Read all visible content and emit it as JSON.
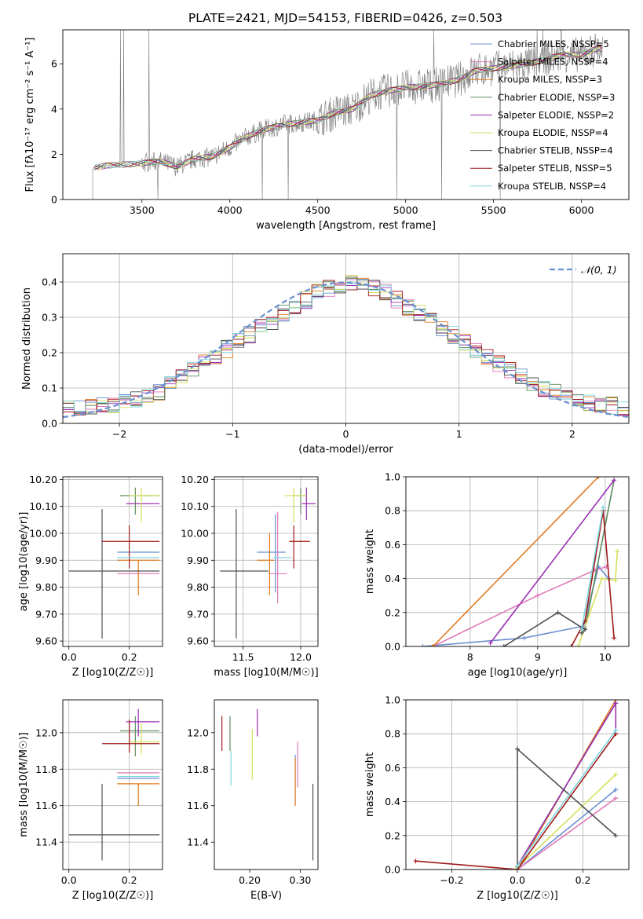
{
  "figure": {
    "title": "PLATE=2421, MJD=54153, FIBERID=0426, z=0.503"
  },
  "chart_data": [
    {
      "id": "spectrum",
      "type": "line",
      "title": "PLATE=2421, MJD=54153, FIBERID=0426, z=0.503",
      "xlabel": "wavelength [Angstrom, rest frame]",
      "ylabel": "Flux [fλ10⁻¹⁷ erg cm⁻² s⁻¹ A⁻¹]",
      "xlim": [
        3050,
        6270
      ],
      "ylim": [
        0,
        7.5
      ],
      "xticks": [
        3500,
        4000,
        4500,
        5000,
        5500,
        6000
      ],
      "yticks": [
        0,
        2,
        4,
        6
      ],
      "grid": false,
      "legend_position": "top-right",
      "data_curve": {
        "x": [
          3220,
          3300,
          3400,
          3500,
          3600,
          3700,
          3800,
          3900,
          4000,
          4100,
          4200,
          4300,
          4400,
          4500,
          4600,
          4700,
          4800,
          4900,
          5000,
          5100,
          5200,
          5300,
          5400,
          5500,
          5600,
          5700,
          5800,
          5900,
          6000,
          6100,
          6120
        ],
        "y": [
          1.4,
          1.5,
          1.55,
          1.6,
          1.7,
          1.45,
          1.8,
          1.9,
          2.3,
          2.8,
          3.1,
          3.3,
          3.4,
          3.5,
          3.85,
          4.0,
          4.6,
          4.8,
          4.95,
          5.0,
          5.1,
          5.3,
          5.7,
          5.8,
          5.9,
          6.0,
          6.2,
          6.4,
          6.4,
          6.7,
          6.6
        ]
      },
      "series": [
        {
          "name": "Chabrier MILES, NSSP=5",
          "color": "#6a8fd0"
        },
        {
          "name": "Salpeter MILES, NSSP=4",
          "color": "#e07ab9"
        },
        {
          "name": "Kroupa MILES, NSSP=3",
          "color": "#e07a20"
        },
        {
          "name": "Chabrier ELODIE, NSSP=3",
          "color": "#5c8c5c"
        },
        {
          "name": "Salpeter ELODIE, NSSP=2",
          "color": "#9b2fb3"
        },
        {
          "name": "Kroupa ELODIE, NSSP=4",
          "color": "#d6e05a"
        },
        {
          "name": "Chabrier STELIB, NSSP=4",
          "color": "#505050"
        },
        {
          "name": "Salpeter STELIB, NSSP=5",
          "color": "#a01818"
        },
        {
          "name": "Kroupa STELIB, NSSP=4",
          "color": "#7fd6e0"
        }
      ]
    },
    {
      "id": "residuals",
      "type": "line",
      "xlabel": "(data-model)/error",
      "ylabel": "Normed distribution",
      "xlim": [
        -2.5,
        2.5
      ],
      "ylim": [
        0,
        0.48
      ],
      "xticks": [
        -2,
        -1,
        0,
        1,
        2
      ],
      "yticks": [
        0.0,
        0.1,
        0.2,
        0.3,
        0.4
      ],
      "grid": true,
      "legend_position": "top-right",
      "legend": [
        "𝒩(0, 1)"
      ],
      "bin_width": 0.1,
      "histogram_base": [
        0.04,
        0.04,
        0.05,
        0.05,
        0.05,
        0.06,
        0.07,
        0.08,
        0.09,
        0.11,
        0.13,
        0.15,
        0.17,
        0.19,
        0.21,
        0.23,
        0.25,
        0.27,
        0.29,
        0.31,
        0.33,
        0.35,
        0.37,
        0.38,
        0.39,
        0.4,
        0.39,
        0.38,
        0.37,
        0.35,
        0.33,
        0.31,
        0.29,
        0.27,
        0.25,
        0.23,
        0.21,
        0.19,
        0.17,
        0.15,
        0.13,
        0.11,
        0.1,
        0.09,
        0.08,
        0.07,
        0.06,
        0.05,
        0.05,
        0.04
      ],
      "normal_curve": {
        "name": "N(0,1)",
        "color": "#6a8fd0"
      }
    },
    {
      "id": "age-vs-Z",
      "type": "scatter",
      "xlabel": "Z [log10(Z/Z☉)]",
      "ylabel": "age  [log10(age/yr)]",
      "xlim": [
        -0.02,
        0.31
      ],
      "ylim": [
        9.58,
        10.21
      ],
      "xticks": [
        0.0,
        0.2
      ],
      "yticks": [
        9.6,
        9.7,
        9.8,
        9.9,
        10.0,
        10.1,
        10.2
      ],
      "grid": true,
      "points": [
        {
          "series": "Chabrier MILES",
          "x": 0.23,
          "y": 9.93,
          "xerr": [
            0.16,
            0.3
          ],
          "yerr": [
            9.93,
            9.93
          ],
          "color": "#6a8fd0"
        },
        {
          "series": "Salpeter MILES",
          "x": 0.25,
          "y": 9.85,
          "xerr": [
            0.16,
            0.3
          ],
          "yerr": [
            9.85,
            9.85
          ],
          "color": "#e07ab9"
        },
        {
          "series": "Kroupa MILES",
          "x": 0.23,
          "y": 9.9,
          "xerr": [
            0.16,
            0.3
          ],
          "yerr": [
            9.77,
            9.9
          ],
          "color": "#e07a20"
        },
        {
          "series": "Chabrier ELODIE",
          "x": 0.22,
          "y": 10.14,
          "xerr": [
            0.17,
            0.3
          ],
          "yerr": [
            10.07,
            10.17
          ],
          "color": "#5c8c5c"
        },
        {
          "series": "Salpeter ELODIE",
          "x": 0.23,
          "y": 10.11,
          "xerr": [
            0.19,
            0.3
          ],
          "yerr": [
            10.11,
            10.11
          ],
          "color": "#9b2fb3"
        },
        {
          "series": "Kroupa ELODIE",
          "x": 0.24,
          "y": 10.14,
          "xerr": [
            0.2,
            0.3
          ],
          "yerr": [
            10.04,
            10.17
          ],
          "color": "#d6e05a"
        },
        {
          "series": "Chabrier STELIB",
          "x": 0.11,
          "y": 9.86,
          "xerr": [
            0.0,
            0.3
          ],
          "yerr": [
            9.61,
            10.09
          ],
          "color": "#505050"
        },
        {
          "series": "Salpeter STELIB",
          "x": 0.2,
          "y": 9.97,
          "xerr": [
            0.11,
            0.3
          ],
          "yerr": [
            9.87,
            10.03
          ],
          "color": "#a01818"
        },
        {
          "series": "Kroupa STELIB",
          "x": 0.25,
          "y": 9.91,
          "xerr": [
            0.16,
            0.3
          ],
          "yerr": [
            9.91,
            9.91
          ],
          "color": "#7fd6e0"
        }
      ]
    },
    {
      "id": "age-vs-mass",
      "type": "scatter",
      "xlabel": "mass [log10(M/M☉)]",
      "ylabel": "",
      "xlim": [
        11.25,
        12.15
      ],
      "ylim": [
        9.58,
        10.21
      ],
      "xticks": [
        11.5,
        12.0
      ],
      "yticks": [
        9.6,
        9.7,
        9.8,
        9.9,
        10.0,
        10.1,
        10.2
      ],
      "grid": true,
      "points": [
        {
          "x": 11.78,
          "y": 9.93,
          "xerr": [
            11.62,
            11.87
          ],
          "yerr": [
            9.78,
            10.07
          ],
          "color": "#6a8fd0"
        },
        {
          "x": 11.8,
          "y": 9.85,
          "xerr": [
            11.72,
            11.88
          ],
          "yerr": [
            9.74,
            10.08
          ],
          "color": "#e07ab9"
        },
        {
          "x": 11.73,
          "y": 9.9,
          "xerr": [
            11.62,
            11.77
          ],
          "yerr": [
            9.77,
            10.0
          ],
          "color": "#e07a20"
        },
        {
          "x": 12.0,
          "y": 10.14,
          "xerr": [
            11.94,
            12.04
          ],
          "yerr": [
            10.07,
            10.17
          ],
          "color": "#5c8c5c"
        },
        {
          "x": 12.05,
          "y": 10.11,
          "xerr": [
            12.01,
            12.13
          ],
          "yerr": [
            10.05,
            10.17
          ],
          "color": "#9b2fb3"
        },
        {
          "x": 11.94,
          "y": 10.14,
          "xerr": [
            11.86,
            12.05
          ],
          "yerr": [
            10.04,
            10.17
          ],
          "color": "#d6e05a"
        },
        {
          "x": 11.44,
          "y": 9.86,
          "xerr": [
            11.3,
            11.72
          ],
          "yerr": [
            9.61,
            10.09
          ],
          "color": "#505050"
        },
        {
          "x": 11.94,
          "y": 9.97,
          "xerr": [
            11.9,
            12.08
          ],
          "yerr": [
            9.87,
            10.03
          ],
          "color": "#a01818"
        },
        {
          "x": 11.76,
          "y": 9.91,
          "xerr": [
            11.76,
            11.92
          ],
          "yerr": [
            9.91,
            9.91
          ],
          "color": "#7fd6e0"
        }
      ]
    },
    {
      "id": "massweight-vs-age",
      "type": "line",
      "xlabel": "age  [log10(age/yr)]",
      "ylabel": "mass weight",
      "xlim": [
        7.05,
        10.35
      ],
      "ylim": [
        0,
        1.0
      ],
      "xticks": [
        8,
        9,
        10
      ],
      "yticks": [
        0.0,
        0.2,
        0.4,
        0.6,
        0.8,
        1.0
      ],
      "grid": true,
      "series": [
        {
          "color": "#6a8fd0",
          "x": [
            7.3,
            8.8,
            9.68,
            9.9,
            10.05
          ],
          "y": [
            0.0,
            0.05,
            0.12,
            0.47,
            0.4
          ]
        },
        {
          "color": "#e07ab9",
          "x": [
            7.45,
            9.0,
            9.85,
            10.02
          ],
          "y": [
            0.0,
            0.3,
            0.45,
            0.47
          ]
        },
        {
          "color": "#e07a20",
          "x": [
            7.45,
            9.9
          ],
          "y": [
            0.0,
            1.0
          ]
        },
        {
          "color": "#5c8c5c",
          "x": [
            9.7,
            10.13
          ],
          "y": [
            0.1,
            0.98
          ]
        },
        {
          "color": "#9b2fb3",
          "x": [
            8.3,
            10.13
          ],
          "y": [
            0.02,
            0.98
          ]
        },
        {
          "color": "#d6e05a",
          "x": [
            9.6,
            9.95,
            10.15,
            10.18
          ],
          "y": [
            0.0,
            0.4,
            0.39,
            0.56
          ]
        },
        {
          "color": "#505050",
          "x": [
            8.5,
            9.3,
            9.7,
            9.65
          ],
          "y": [
            0.0,
            0.2,
            0.1,
            0.08
          ]
        },
        {
          "color": "#a01818",
          "x": [
            9.5,
            9.7,
            9.97,
            10.13
          ],
          "y": [
            0.0,
            0.15,
            0.8,
            0.05
          ]
        },
        {
          "color": "#7fd6e0",
          "x": [
            9.65,
            9.97
          ],
          "y": [
            0.1,
            0.82
          ]
        }
      ]
    },
    {
      "id": "mass-vs-Z",
      "type": "scatter",
      "xlabel": "Z [log10(Z/Z☉)]",
      "ylabel": "mass [log10(M/M☉)]",
      "xlim": [
        -0.02,
        0.31
      ],
      "ylim": [
        11.25,
        12.18
      ],
      "xticks": [
        0.0,
        0.2
      ],
      "yticks": [
        11.4,
        11.6,
        11.8,
        12.0
      ],
      "grid": true,
      "points": [
        {
          "x": 0.23,
          "y": 11.75,
          "xerr": [
            0.16,
            0.3
          ],
          "yerr": [
            11.75,
            11.75
          ],
          "color": "#6a8fd0"
        },
        {
          "x": 0.25,
          "y": 11.78,
          "xerr": [
            0.16,
            0.3
          ],
          "yerr": [
            11.78,
            11.78
          ],
          "color": "#e07ab9"
        },
        {
          "x": 0.23,
          "y": 11.72,
          "xerr": [
            0.16,
            0.3
          ],
          "yerr": [
            11.6,
            11.72
          ],
          "color": "#e07a20"
        },
        {
          "x": 0.22,
          "y": 12.01,
          "xerr": [
            0.17,
            0.3
          ],
          "yerr": [
            11.87,
            12.09
          ],
          "color": "#5c8c5c"
        },
        {
          "x": 0.23,
          "y": 12.06,
          "xerr": [
            0.19,
            0.3
          ],
          "yerr": [
            11.98,
            12.13
          ],
          "color": "#9b2fb3"
        },
        {
          "x": 0.24,
          "y": 11.95,
          "xerr": [
            0.2,
            0.3
          ],
          "yerr": [
            11.88,
            12.05
          ],
          "color": "#d6e05a"
        },
        {
          "x": 0.11,
          "y": 11.44,
          "xerr": [
            0.0,
            0.3
          ],
          "yerr": [
            11.3,
            11.72
          ],
          "color": "#505050"
        },
        {
          "x": 0.2,
          "y": 11.94,
          "xerr": [
            0.11,
            0.3
          ],
          "yerr": [
            11.89,
            12.07
          ],
          "color": "#a01818"
        },
        {
          "x": 0.25,
          "y": 11.76,
          "xerr": [
            0.16,
            0.3
          ],
          "yerr": [
            11.76,
            11.76
          ],
          "color": "#7fd6e0"
        }
      ]
    },
    {
      "id": "mass-vs-EBV",
      "type": "scatter",
      "xlabel": "E(B-V)",
      "ylabel": "",
      "xlim": [
        0.13,
        0.335
      ],
      "ylim": [
        11.25,
        12.18
      ],
      "xticks": [
        0.2,
        0.3
      ],
      "yticks": [
        11.4,
        11.6,
        11.8,
        12.0
      ],
      "grid": false,
      "points": [
        {
          "x": 0.29,
          "y": 11.75,
          "yerr": [
            11.6,
            11.88
          ],
          "color": "#6a8fd0"
        },
        {
          "x": 0.295,
          "y": 11.8,
          "yerr": [
            11.7,
            11.95
          ],
          "color": "#e07ab9"
        },
        {
          "x": 0.29,
          "y": 11.72,
          "yerr": [
            11.6,
            11.86
          ],
          "color": "#e07a20"
        },
        {
          "x": 0.161,
          "y": 12.0,
          "yerr": [
            11.9,
            12.09
          ],
          "color": "#5c8c5c"
        },
        {
          "x": 0.215,
          "y": 12.06,
          "yerr": [
            11.98,
            12.13
          ],
          "color": "#9b2fb3"
        },
        {
          "x": 0.205,
          "y": 11.86,
          "yerr": [
            11.74,
            12.02
          ],
          "color": "#d6e05a"
        },
        {
          "x": 0.325,
          "y": 11.44,
          "yerr": [
            11.3,
            11.72
          ],
          "color": "#505050"
        },
        {
          "x": 0.145,
          "y": 12.0,
          "yerr": [
            11.9,
            12.09
          ],
          "color": "#a01818"
        },
        {
          "x": 0.163,
          "y": 11.8,
          "yerr": [
            11.71,
            11.9
          ],
          "color": "#7fd6e0"
        }
      ]
    },
    {
      "id": "massweight-vs-Z",
      "type": "line",
      "xlabel": "Z [log10(Z/Z☉)]",
      "ylabel": "mass weight",
      "xlim": [
        -0.34,
        0.34
      ],
      "ylim": [
        0,
        1.0
      ],
      "xticks": [
        -0.2,
        0.0,
        0.2
      ],
      "yticks": [
        0.0,
        0.2,
        0.4,
        0.6,
        0.8,
        1.0
      ],
      "grid": true,
      "series": [
        {
          "color": "#6a8fd0",
          "x": [
            0.0,
            0.3
          ],
          "y": [
            0.0,
            0.47
          ]
        },
        {
          "color": "#e07ab9",
          "x": [
            0.0,
            0.3
          ],
          "y": [
            0.0,
            0.42
          ]
        },
        {
          "color": "#e07a20",
          "x": [
            0.0,
            0.3
          ],
          "y": [
            0.0,
            1.0
          ]
        },
        {
          "color": "#5c8c5c",
          "x": [
            0.0,
            0.3
          ],
          "y": [
            0.02,
            0.98
          ]
        },
        {
          "color": "#9b2fb3",
          "x": [
            0.0,
            0.3,
            0.3
          ],
          "y": [
            0.02,
            0.98,
            0.8
          ]
        },
        {
          "color": "#d6e05a",
          "x": [
            0.0,
            0.3
          ],
          "y": [
            0.01,
            0.56
          ]
        },
        {
          "color": "#505050",
          "x": [
            0.0,
            0.0,
            0.3
          ],
          "y": [
            0.0,
            0.71,
            0.2
          ]
        },
        {
          "color": "#a01818",
          "x": [
            -0.31,
            0.0,
            0.3
          ],
          "y": [
            0.05,
            0.0,
            0.8
          ]
        },
        {
          "color": "#7fd6e0",
          "x": [
            0.0,
            0.3
          ],
          "y": [
            0.02,
            0.82
          ]
        }
      ]
    }
  ]
}
